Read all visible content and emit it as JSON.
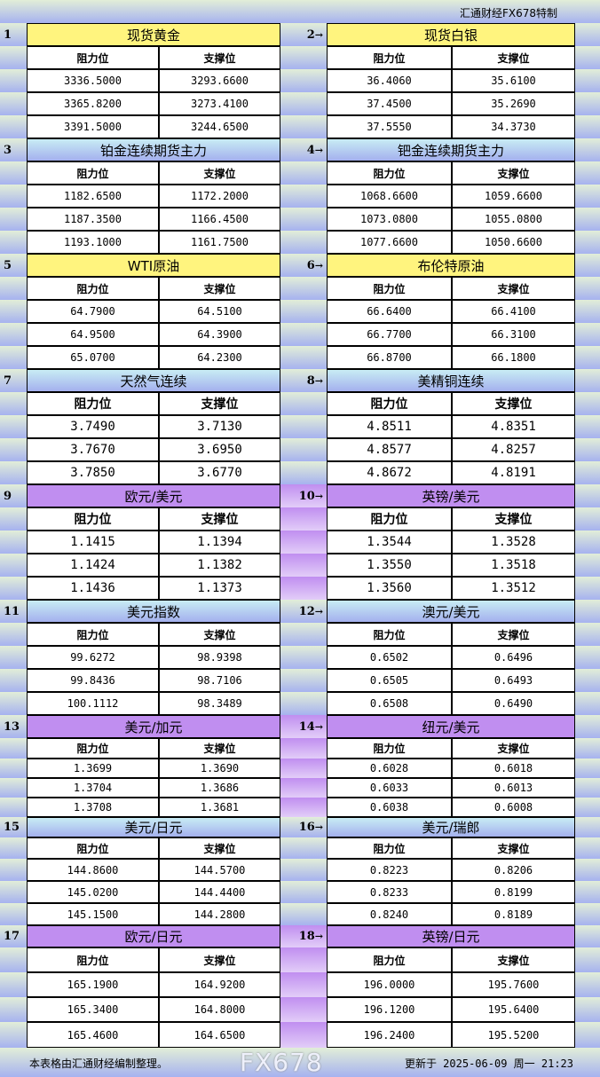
{
  "title": "汇通财经FX678特制",
  "colors": {
    "yellow": "#fff47e",
    "blue_top": "#c6e8f4",
    "blue_bottom": "#a4b0ee",
    "purple": "#c08ef0"
  },
  "col_resist": "阻力位",
  "col_support": "支撑位",
  "sections": [
    {
      "num": "1",
      "arrow": false,
      "name": "现货黄金",
      "style": "yellow",
      "resist": [
        "3336.5000",
        "3365.8200",
        "3391.5000"
      ],
      "support": [
        "3293.6600",
        "3273.4100",
        "3244.6500"
      ]
    },
    {
      "num": "2",
      "arrow": true,
      "name": "现货白银",
      "style": "yellow",
      "resist": [
        "36.4060",
        "37.4500",
        "37.5550"
      ],
      "support": [
        "35.6100",
        "35.2690",
        "34.3730"
      ]
    },
    {
      "num": "3",
      "arrow": false,
      "name": "铂金连续期货主力",
      "style": "blue",
      "resist": [
        "1182.6500",
        "1187.3500",
        "1193.1000"
      ],
      "support": [
        "1172.2000",
        "1166.4500",
        "1161.7500"
      ]
    },
    {
      "num": "4",
      "arrow": true,
      "name": "钯金连续期货主力",
      "style": "blue",
      "resist": [
        "1068.6600",
        "1073.0800",
        "1077.6600"
      ],
      "support": [
        "1059.6600",
        "1055.0800",
        "1050.6600"
      ]
    },
    {
      "num": "5",
      "arrow": false,
      "name": "WTI原油",
      "style": "yellow",
      "resist": [
        "64.7900",
        "64.9500",
        "65.0700"
      ],
      "support": [
        "64.5100",
        "64.3900",
        "64.2300"
      ]
    },
    {
      "num": "6",
      "arrow": true,
      "name": "布伦特原油",
      "style": "yellow",
      "resist": [
        "66.6400",
        "66.7700",
        "66.8700"
      ],
      "support": [
        "66.4100",
        "66.3100",
        "66.1800"
      ]
    },
    {
      "num": "7",
      "arrow": false,
      "name": "天然气连续",
      "style": "blue",
      "resist": [
        "3.7490",
        "3.7670",
        "3.7850"
      ],
      "support": [
        "3.7130",
        "3.6950",
        "3.6770"
      ]
    },
    {
      "num": "8",
      "arrow": true,
      "name": "美精铜连续",
      "style": "blue",
      "resist": [
        "4.8511",
        "4.8577",
        "4.8672"
      ],
      "support": [
        "4.8351",
        "4.8257",
        "4.8191"
      ]
    },
    {
      "num": "9",
      "arrow": false,
      "name": "欧元/美元",
      "style": "purple",
      "resist": [
        "1.1415",
        "1.1424",
        "1.1436"
      ],
      "support": [
        "1.1394",
        "1.1382",
        "1.1373"
      ]
    },
    {
      "num": "10",
      "arrow": true,
      "name": "英镑/美元",
      "style": "purple",
      "resist": [
        "1.3544",
        "1.3550",
        "1.3560"
      ],
      "support": [
        "1.3528",
        "1.3518",
        "1.3512"
      ]
    },
    {
      "num": "11",
      "arrow": false,
      "name": "美元指数",
      "style": "blue",
      "resist": [
        "99.6272",
        "99.8436",
        "100.1112"
      ],
      "support": [
        "98.9398",
        "98.7106",
        "98.3489"
      ]
    },
    {
      "num": "12",
      "arrow": true,
      "name": "澳元/美元",
      "style": "blue",
      "resist": [
        "0.6502",
        "0.6505",
        "0.6508"
      ],
      "support": [
        "0.6496",
        "0.6493",
        "0.6490"
      ]
    },
    {
      "num": "13",
      "arrow": false,
      "name": "美元/加元",
      "style": "purple",
      "resist": [
        "1.3699",
        "1.3704",
        "1.3708"
      ],
      "support": [
        "1.3690",
        "1.3686",
        "1.3681"
      ]
    },
    {
      "num": "14",
      "arrow": true,
      "name": "纽元/美元",
      "style": "purple",
      "resist": [
        "0.6028",
        "0.6033",
        "0.6038"
      ],
      "support": [
        "0.6018",
        "0.6013",
        "0.6008"
      ]
    },
    {
      "num": "15",
      "arrow": false,
      "name": "美元/日元",
      "style": "blue",
      "resist": [
        "144.8600",
        "145.0200",
        "145.1500"
      ],
      "support": [
        "144.5700",
        "144.4400",
        "144.2800"
      ]
    },
    {
      "num": "16",
      "arrow": true,
      "name": "美元/瑞郎",
      "style": "blue",
      "resist": [
        "0.8223",
        "0.8233",
        "0.8240"
      ],
      "support": [
        "0.8206",
        "0.8199",
        "0.8189"
      ]
    },
    {
      "num": "17",
      "arrow": false,
      "name": "欧元/日元",
      "style": "purple",
      "resist": [
        "165.1900",
        "165.3400",
        "165.4600"
      ],
      "support": [
        "164.9200",
        "164.8000",
        "164.6500"
      ]
    },
    {
      "num": "18",
      "arrow": true,
      "name": "英镑/日元",
      "style": "purple",
      "resist": [
        "196.0000",
        "196.1200",
        "196.2400"
      ],
      "support": [
        "195.7600",
        "195.6400",
        "195.5200"
      ]
    }
  ],
  "footer": {
    "note": "本表格由汇通财经编制整理。",
    "updated": "更新于 2025-06-09 周一 21:23"
  },
  "watermark": "FX678"
}
